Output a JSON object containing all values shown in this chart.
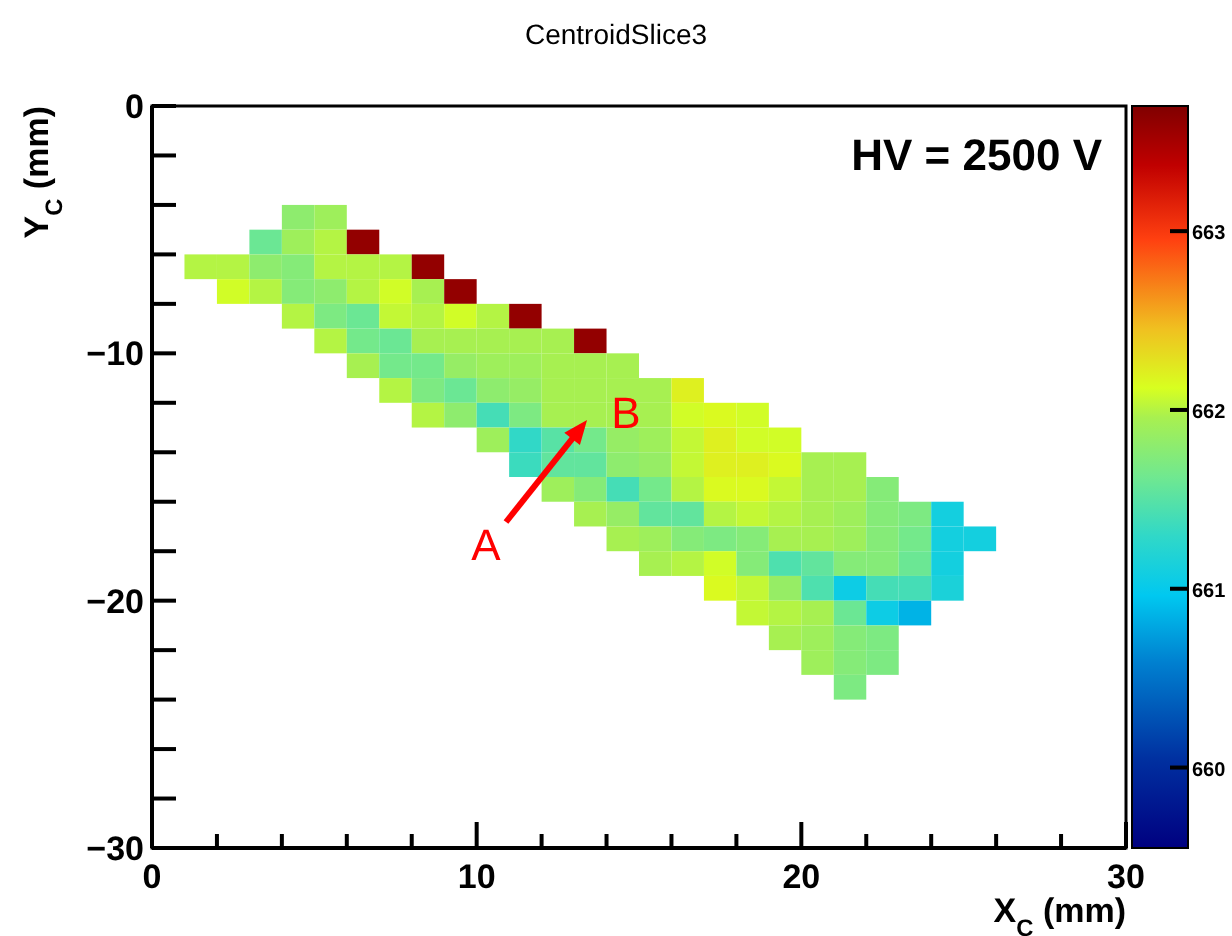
{
  "chart_data": {
    "type": "scatter",
    "title": "CentroidSlice3",
    "xlabel": "X$_{C}$ (mm)",
    "ylabel": "Y$_{C}$ (mm)",
    "marker": "square",
    "xlim": [
      0,
      30
    ],
    "xticks": [
      0,
      {
        "value": 2,
        "label": null
      },
      {
        "value": 4,
        "label": null
      },
      {
        "value": 6,
        "label": null
      },
      {
        "value": 8,
        "label": null
      },
      10,
      {
        "value": 12,
        "label": null
      },
      {
        "value": 14,
        "label": null
      },
      {
        "value": 16,
        "label": null
      },
      {
        "value": 18,
        "label": null
      },
      20,
      {
        "value": 22,
        "label": null
      },
      {
        "value": 24,
        "label": null
      },
      {
        "value": 26,
        "label": null
      },
      {
        "value": 28,
        "label": null
      },
      30
    ],
    "ylim": [
      -30,
      0
    ],
    "yticks": [
      {
        "value": -30,
        "label": "−30"
      },
      {
        "value": -28,
        "label": null
      },
      {
        "value": -26,
        "label": null
      },
      {
        "value": -24,
        "label": null
      },
      {
        "value": -22,
        "label": null
      },
      {
        "value": -20,
        "label": "−20"
      },
      {
        "value": -18,
        "label": null
      },
      {
        "value": -16,
        "label": null
      },
      {
        "value": -14,
        "label": null
      },
      {
        "value": -12,
        "label": null
      },
      {
        "value": -10,
        "label": "−10"
      },
      {
        "value": -8,
        "label": null
      },
      {
        "value": -6,
        "label": null
      },
      {
        "value": -4,
        "label": null
      },
      {
        "value": -2,
        "label": null
      },
      0
    ],
    "clim": [
      659.55,
      663.7
    ],
    "cticks": [
      660,
      661,
      662,
      663
    ],
    "annotations": [
      "HV = 2500 V",
      {
        "text": "A",
        "x": 13.4,
        "y": -12.7
      },
      "B"
    ],
    "x": [
      4.5,
      5.5,
      3.5,
      4.5,
      5.5,
      6.5,
      1.5,
      2.5,
      3.5,
      4.5,
      5.5,
      6.5,
      7.5,
      8.5,
      2.5,
      3.5,
      4.5,
      5.5,
      6.5,
      7.5,
      8.5,
      9.5,
      4.5,
      5.5,
      6.5,
      7.5,
      8.5,
      9.5,
      10.5,
      11.5,
      5.5,
      6.5,
      7.5,
      8.5,
      9.5,
      10.5,
      11.5,
      12.5,
      13.5,
      6.5,
      7.5,
      8.5,
      9.5,
      10.5,
      11.5,
      12.5,
      13.5,
      14.5,
      7.5,
      8.5,
      9.5,
      10.5,
      11.5,
      12.5,
      13.5,
      14.5,
      15.5,
      16.5,
      8.5,
      9.5,
      10.5,
      11.5,
      12.5,
      13.5,
      14.5,
      15.5,
      16.5,
      17.5,
      18.5,
      10.5,
      11.5,
      12.5,
      13.5,
      14.5,
      15.5,
      16.5,
      17.5,
      18.5,
      19.5,
      11.5,
      12.5,
      13.5,
      14.5,
      15.5,
      16.5,
      17.5,
      18.5,
      19.5,
      20.5,
      21.5,
      12.5,
      13.5,
      14.5,
      15.5,
      16.5,
      17.5,
      18.5,
      19.5,
      20.5,
      21.5,
      22.5,
      13.5,
      14.5,
      15.5,
      16.5,
      17.5,
      18.5,
      19.5,
      20.5,
      21.5,
      22.5,
      23.5,
      24.5,
      14.5,
      15.5,
      16.5,
      17.5,
      18.5,
      19.5,
      20.5,
      21.5,
      22.5,
      23.5,
      24.5,
      25.5,
      15.5,
      16.5,
      17.5,
      18.5,
      19.5,
      20.5,
      21.5,
      22.5,
      23.5,
      24.5,
      17.5,
      18.5,
      19.5,
      20.5,
      21.5,
      22.5,
      23.5,
      24.5,
      18.5,
      19.5,
      20.5,
      21.5,
      22.5,
      23.5,
      19.5,
      20.5,
      21.5,
      22.5,
      20.5,
      21.5,
      22.5,
      21.5
    ],
    "values": [
      -4.5,
      -4.5,
      -5.5,
      -5.5,
      -5.5,
      -5.5,
      -6.5,
      -6.5,
      -6.5,
      -6.5,
      -6.5,
      -6.5,
      -6.5,
      -6.5,
      -7.5,
      -7.5,
      -7.5,
      -7.5,
      -7.5,
      -7.5,
      -7.5,
      -7.5,
      -8.5,
      -8.5,
      -8.5,
      -8.5,
      -8.5,
      -8.5,
      -8.5,
      -8.5,
      -9.5,
      -9.5,
      -9.5,
      -9.5,
      -9.5,
      -9.5,
      -9.5,
      -9.5,
      -9.5,
      -10.5,
      -10.5,
      -10.5,
      -10.5,
      -10.5,
      -10.5,
      -10.5,
      -10.5,
      -10.5,
      -11.5,
      -11.5,
      -11.5,
      -11.5,
      -11.5,
      -11.5,
      -11.5,
      -11.5,
      -11.5,
      -11.5,
      -12.5,
      -12.5,
      -12.5,
      -12.5,
      -12.5,
      -12.5,
      -12.5,
      -12.5,
      -12.5,
      -12.5,
      -12.5,
      -13.5,
      -13.5,
      -13.5,
      -13.5,
      -13.5,
      -13.5,
      -13.5,
      -13.5,
      -13.5,
      -13.5,
      -14.5,
      -14.5,
      -14.5,
      -14.5,
      -14.5,
      -14.5,
      -14.5,
      -14.5,
      -14.5,
      -14.5,
      -14.5,
      -15.5,
      -15.5,
      -15.5,
      -15.5,
      -15.5,
      -15.5,
      -15.5,
      -15.5,
      -15.5,
      -15.5,
      -15.5,
      -16.5,
      -16.5,
      -16.5,
      -16.5,
      -16.5,
      -16.5,
      -16.5,
      -16.5,
      -16.5,
      -16.5,
      -16.5,
      -16.5,
      -17.5,
      -17.5,
      -17.5,
      -17.5,
      -17.5,
      -17.5,
      -17.5,
      -17.5,
      -17.5,
      -17.5,
      -17.5,
      -17.5,
      -18.5,
      -18.5,
      -18.5,
      -18.5,
      -18.5,
      -18.5,
      -18.5,
      -18.5,
      -18.5,
      -18.5,
      -19.5,
      -19.5,
      -19.5,
      -19.5,
      -19.5,
      -19.5,
      -19.5,
      -19.5,
      -20.5,
      -20.5,
      -20.5,
      -20.5,
      -20.5,
      -20.5,
      -21.5,
      -21.5,
      -21.5,
      -21.5,
      -22.5,
      -22.5,
      -22.5,
      -23.5
    ],
    "cvalues": [
      661.8,
      661.9,
      661.6,
      661.9,
      662.0,
      663.6,
      662.0,
      662.0,
      661.8,
      661.75,
      662.0,
      662.0,
      662.0,
      663.6,
      662.1,
      662.0,
      661.75,
      661.8,
      662.0,
      662.1,
      661.95,
      663.6,
      662.0,
      661.7,
      661.6,
      662.05,
      662.0,
      662.1,
      662.0,
      663.6,
      662.0,
      661.65,
      661.6,
      661.95,
      661.95,
      661.95,
      661.95,
      661.95,
      663.6,
      661.95,
      661.65,
      661.65,
      661.85,
      661.9,
      661.9,
      661.95,
      661.95,
      661.95,
      662.0,
      661.7,
      661.6,
      661.8,
      661.85,
      661.95,
      661.95,
      661.95,
      661.95,
      662.2,
      662.0,
      661.8,
      661.4,
      661.7,
      661.95,
      661.95,
      661.95,
      661.95,
      662.1,
      662.15,
      662.1,
      661.9,
      661.3,
      661.5,
      661.65,
      661.85,
      661.9,
      662.05,
      662.2,
      662.1,
      662.1,
      661.35,
      661.55,
      661.55,
      661.8,
      661.85,
      662.05,
      662.2,
      662.2,
      662.15,
      661.95,
      661.95,
      661.9,
      661.75,
      661.4,
      661.65,
      662.0,
      662.15,
      662.15,
      662.05,
      661.95,
      661.95,
      661.75,
      661.95,
      661.85,
      661.55,
      661.55,
      662.0,
      662.05,
      662.0,
      661.95,
      661.9,
      661.75,
      661.7,
      661.1,
      661.95,
      661.9,
      661.75,
      661.7,
      661.75,
      661.95,
      661.95,
      661.9,
      661.75,
      661.65,
      661.1,
      661.1,
      661.95,
      662.0,
      662.1,
      661.75,
      661.45,
      661.55,
      661.75,
      661.75,
      661.6,
      661.1,
      662.15,
      662.05,
      661.85,
      661.45,
      661.05,
      661.4,
      661.4,
      661.15,
      662.05,
      662.0,
      661.95,
      661.6,
      661.05,
      660.85,
      661.95,
      661.9,
      661.75,
      661.7,
      661.9,
      661.75,
      661.7,
      661.7
    ]
  }
}
